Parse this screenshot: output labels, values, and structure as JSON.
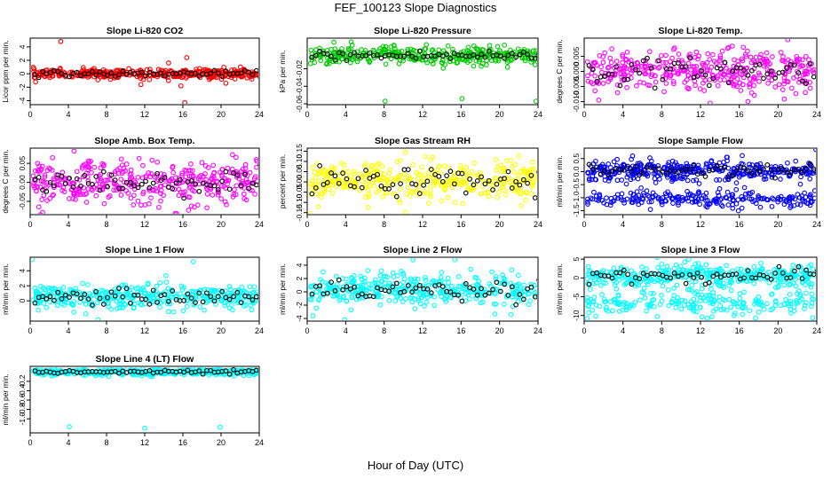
{
  "figure": {
    "title": "FEF_100123  Slope Diagnostics",
    "xlabel": "Hour of Day (UTC)"
  },
  "chart_data": [
    {
      "type": "scatter",
      "title": "Slope Li-820 CO2",
      "ylabel": "Licor ppm per min.",
      "xlim": [
        0,
        24
      ],
      "ylim": [
        -4.6,
        5.3
      ],
      "xticks": [
        0,
        4,
        8,
        12,
        16,
        20,
        24
      ],
      "yticks": [
        -4,
        -2,
        0,
        2,
        4
      ],
      "ytick_labels": [
        "-4",
        "-2",
        "0",
        "2",
        "4"
      ],
      "color": "#ff0000",
      "center": 0,
      "spread": 0.35,
      "band2": null,
      "outliers": [
        {
          "x": 3.2,
          "y": 4.8
        },
        {
          "x": 16.2,
          "y": -4.3
        },
        {
          "x": 11.6,
          "y": -1.6
        },
        {
          "x": 15.8,
          "y": -1.8
        },
        {
          "x": 16.4,
          "y": 2.4
        },
        {
          "x": 14.5,
          "y": 1.6
        },
        {
          "x": 7.1,
          "y": -0.9
        },
        {
          "x": 20.5,
          "y": -1.4
        }
      ]
    },
    {
      "type": "scatter",
      "title": "Slope Li-820 Pressure",
      "ylabel": "kPa per min.",
      "xlim": [
        0,
        24
      ],
      "ylim": [
        -0.061,
        0.015
      ],
      "xticks": [
        0,
        4,
        8,
        12,
        16,
        20,
        24
      ],
      "yticks": [
        -0.06,
        -0.04,
        -0.02
      ],
      "ytick_labels": [
        "-0.06",
        "-0.04",
        "-0.02"
      ],
      "color": "#00cc00",
      "center": -0.005,
      "spread": 0.005,
      "band2": null,
      "outliers": [
        {
          "x": 8.1,
          "y": -0.057
        },
        {
          "x": 16.1,
          "y": -0.054
        },
        {
          "x": 23.8,
          "y": -0.057
        }
      ]
    },
    {
      "type": "scatter",
      "title": "Slope Li-820 Temp.",
      "ylabel": "degrees C per min.",
      "xlim": [
        0,
        24
      ],
      "ylim": [
        -0.011,
        0.011
      ],
      "xticks": [
        0,
        4,
        8,
        12,
        16,
        20,
        24
      ],
      "yticks": [
        -0.01,
        -0.005,
        0,
        0.005
      ],
      "ytick_labels": [
        "-0.010",
        "-0.005",
        "0.000",
        "0.005"
      ],
      "color": "#ff00ff",
      "center": 0,
      "spread": 0.0035,
      "band2": null,
      "outliers": [
        {
          "x": 13.0,
          "y": -0.0105
        },
        {
          "x": 21.0,
          "y": 0.0105
        },
        {
          "x": 1.5,
          "y": -0.0095
        }
      ]
    },
    {
      "type": "scatter",
      "title": "Slope Amb. Box Temp.",
      "ylabel": "degrees C per min.",
      "xlim": [
        0,
        24
      ],
      "ylim": [
        -0.085,
        0.09
      ],
      "xticks": [
        0,
        4,
        8,
        12,
        16,
        20,
        24
      ],
      "yticks": [
        -0.05,
        0,
        0.05
      ],
      "ytick_labels": [
        "-0.05",
        "0.00",
        "0.05"
      ],
      "color": "#ff00ff",
      "center": 0,
      "spread": 0.028,
      "band2": null,
      "outliers": [
        {
          "x": 15.2,
          "y": -0.082
        },
        {
          "x": 4.6,
          "y": 0.082
        }
      ]
    },
    {
      "type": "scatter",
      "title": "Slope Gas Stream RH",
      "ylabel": "percent per min.",
      "xlim": [
        0,
        24
      ],
      "ylim": [
        -0.16,
        0.165
      ],
      "xticks": [
        0,
        4,
        8,
        12,
        16,
        20,
        24
      ],
      "yticks": [
        -0.15,
        -0.1,
        -0.05,
        0,
        0.05,
        0.1,
        0.15
      ],
      "ytick_labels": [
        "-0.15",
        "-0.10",
        "-0.05",
        "0.00",
        "0.05",
        "0.10",
        "0.15"
      ],
      "color": "#ffff00",
      "center": 0,
      "spread": 0.05,
      "band2": null,
      "outliers": [
        {
          "x": 0.3,
          "y": -0.155
        },
        {
          "x": 10.2,
          "y": 0.145
        }
      ]
    },
    {
      "type": "scatter",
      "title": "Slope Sample Flow",
      "ylabel": "ml/min per min.",
      "xlim": [
        0,
        24
      ],
      "ylim": [
        -1.65,
        0.9
      ],
      "xticks": [
        0,
        4,
        8,
        12,
        16,
        20,
        24
      ],
      "yticks": [
        -1.5,
        -1,
        -0.5,
        0,
        0.5
      ],
      "ytick_labels": [
        "-1.5",
        "-1.0",
        "-0.5",
        "0.0",
        "0.5"
      ],
      "color": "#0000ff",
      "center": 0.05,
      "spread": 0.2,
      "band2": {
        "center": -1.05,
        "spread": 0.15
      },
      "outliers": [
        {
          "x": 23.9,
          "y": 0.85
        }
      ]
    },
    {
      "type": "scatter",
      "title": "Slope Line 1 Flow",
      "ylabel": "ml/min per min.",
      "xlim": [
        0,
        24
      ],
      "ylim": [
        -2.7,
        5.8
      ],
      "xticks": [
        0,
        4,
        8,
        12,
        16,
        20,
        24
      ],
      "yticks": [
        0,
        2,
        4
      ],
      "ytick_labels": [
        "0",
        "2",
        "4"
      ],
      "color": "#00ffff",
      "center": 0.5,
      "spread": 0.8,
      "band2": null,
      "outliers": [
        {
          "x": 0.2,
          "y": 5.5
        },
        {
          "x": 17.1,
          "y": 5.2
        },
        {
          "x": 7.1,
          "y": -2.5
        }
      ]
    },
    {
      "type": "scatter",
      "title": "Slope Line 2 Flow",
      "ylabel": "ml/min per min.",
      "xlim": [
        0,
        24
      ],
      "ylim": [
        -4.4,
        5.2
      ],
      "xticks": [
        0,
        4,
        8,
        12,
        16,
        20,
        24
      ],
      "yticks": [
        -4,
        -2,
        0,
        2,
        4
      ],
      "ytick_labels": [
        "-4",
        "-2",
        "0",
        "2",
        "4"
      ],
      "color": "#00ffff",
      "center": 0.3,
      "spread": 1.2,
      "band2": null,
      "outliers": [
        {
          "x": 11.0,
          "y": 4.8
        },
        {
          "x": 3.9,
          "y": -4.2
        },
        {
          "x": 0.6,
          "y": -3.6
        }
      ]
    },
    {
      "type": "scatter",
      "title": "Slope Line 3 Flow",
      "ylabel": "ml/min per min.",
      "xlim": [
        0,
        24
      ],
      "ylim": [
        -11.5,
        5.5
      ],
      "xticks": [
        0,
        4,
        8,
        12,
        16,
        20,
        24
      ],
      "yticks": [
        -10,
        -5,
        0,
        5
      ],
      "ytick_labels": [
        "-10",
        "-5",
        "0",
        "5"
      ],
      "color": "#00ffff",
      "center": 0.5,
      "spread": 1.5,
      "band2": {
        "center": -6.5,
        "spread": 1.8
      },
      "outliers": [
        {
          "x": 10.8,
          "y": 4.9
        },
        {
          "x": 0.3,
          "y": -10.8
        }
      ]
    },
    {
      "type": "scatter",
      "title": "Slope Line 4 (LT) Flow",
      "ylabel": "ml/min per min.",
      "xlim": [
        0,
        24
      ],
      "ylim": [
        -1.3,
        0.12
      ],
      "xticks": [
        0,
        4,
        8,
        12,
        16,
        20,
        24
      ],
      "yticks": [
        -1,
        -0.8,
        -0.6,
        -0.4,
        -0.2
      ],
      "ytick_labels": [
        "-1.0",
        "-0.8",
        "-0.6",
        "-0.4",
        "-0.2"
      ],
      "color": "#00ffff",
      "center": 0,
      "spread": 0.035,
      "band2": null,
      "outliers": [
        {
          "x": 4.1,
          "y": -1.17
        },
        {
          "x": 12.0,
          "y": -1.2
        },
        {
          "x": 19.9,
          "y": -1.18
        }
      ]
    }
  ]
}
